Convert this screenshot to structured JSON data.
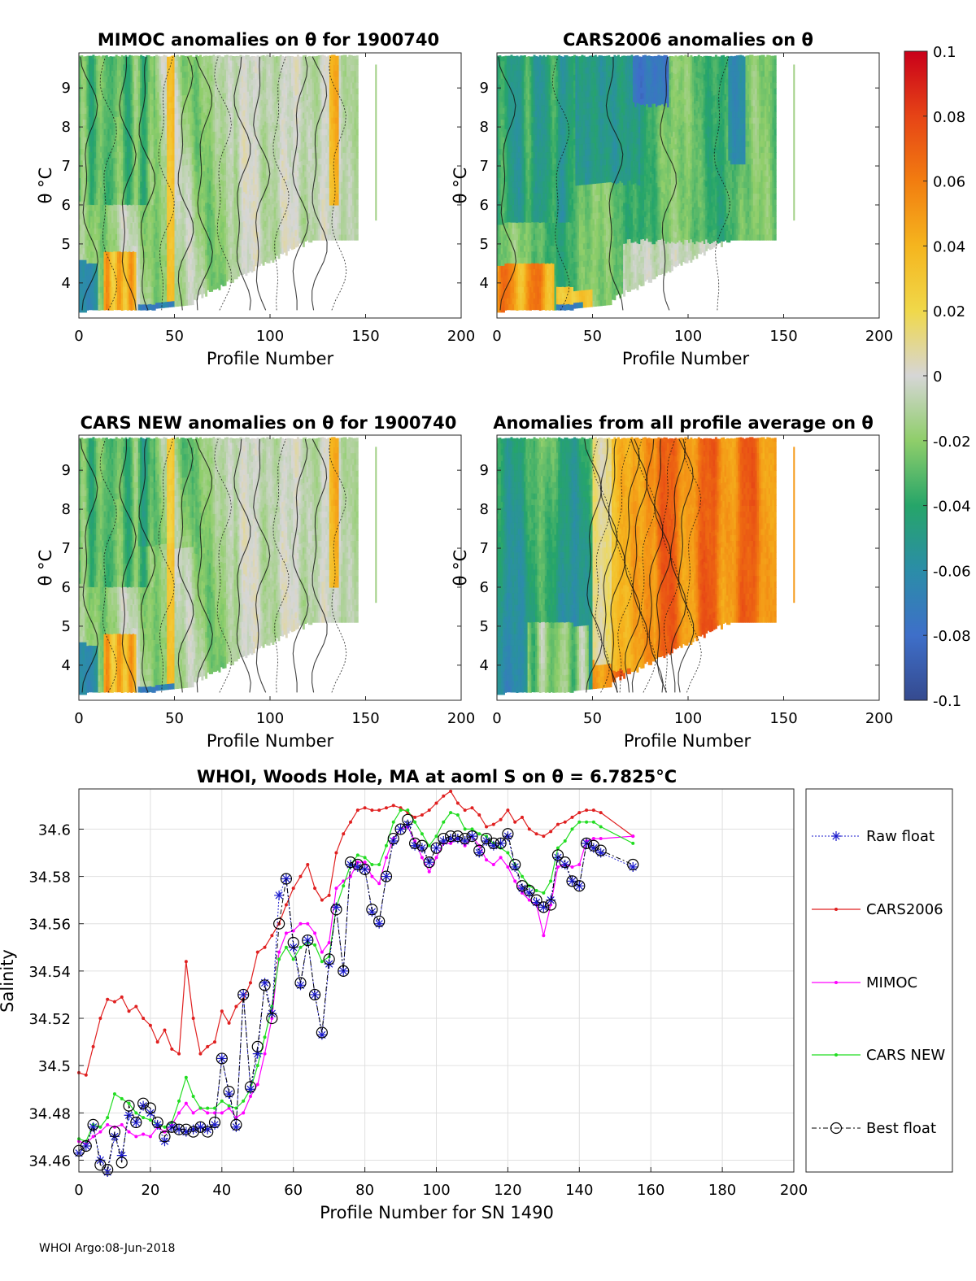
{
  "footer": "WHOI Argo:08-Jun-2018",
  "colors": {
    "raw": "#1a1acc",
    "cars2006": "#e02020",
    "mimoc": "#ff00ff",
    "carsnew": "#22dd22",
    "best": "#000000",
    "frame": "#262626",
    "grid": "#e0e0e0"
  },
  "colorbar": {
    "ticks": [
      "0.1",
      "0.08",
      "0.06",
      "0.04",
      "0.02",
      "0",
      "-0.02",
      "-0.04",
      "-0.06",
      "-0.08",
      "-0.1"
    ],
    "range": [
      -0.1,
      0.1
    ]
  },
  "chart_data": [
    {
      "type": "heatmap",
      "title": "MIMOC anomalies on θ  for 1900740",
      "xlabel": "Profile Number",
      "ylabel": "θ °C",
      "xlim": [
        0,
        200
      ],
      "ylim": [
        3.1,
        9.9
      ],
      "xticks": [
        "0",
        "50",
        "100",
        "150",
        "200"
      ],
      "yticks": [
        "4",
        "5",
        "6",
        "7",
        "8",
        "9"
      ],
      "profile_range": [
        0,
        146
      ],
      "pattern": "mimoc"
    },
    {
      "type": "heatmap",
      "title": "CARS2006 anomalies on θ",
      "xlabel": "Profile Number",
      "ylabel": "θ °C",
      "xlim": [
        0,
        200
      ],
      "ylim": [
        3.1,
        9.9
      ],
      "xticks": [
        "0",
        "50",
        "100",
        "150",
        "200"
      ],
      "yticks": [
        "4",
        "5",
        "6",
        "7",
        "8",
        "9"
      ],
      "profile_range": [
        0,
        146
      ],
      "pattern": "cars2006"
    },
    {
      "type": "heatmap",
      "title": "CARS NEW anomalies on θ for 1900740",
      "xlabel": "Profile Number",
      "ylabel": "θ °C",
      "xlim": [
        0,
        200
      ],
      "ylim": [
        3.1,
        9.9
      ],
      "xticks": [
        "0",
        "50",
        "100",
        "150",
        "200"
      ],
      "yticks": [
        "4",
        "5",
        "6",
        "7",
        "8",
        "9"
      ],
      "profile_range": [
        0,
        146
      ],
      "pattern": "carsnew"
    },
    {
      "type": "heatmap",
      "title": "Anomalies from all profile average on θ",
      "xlabel": "Profile Number",
      "ylabel": "θ °C",
      "xlim": [
        0,
        200
      ],
      "ylim": [
        3.1,
        9.9
      ],
      "xticks": [
        "0",
        "50",
        "100",
        "150",
        "200"
      ],
      "yticks": [
        "4",
        "5",
        "6",
        "7",
        "8",
        "9"
      ],
      "profile_range": [
        0,
        146
      ],
      "pattern": "average"
    },
    {
      "type": "line",
      "title": "WHOI, Woods Hole, MA at aoml S on θ = 6.7825°C",
      "xlabel": "Profile Number for SN 1490",
      "ylabel": "Salinity",
      "xlim": [
        0,
        200
      ],
      "ylim": [
        34.455,
        34.617
      ],
      "xticks": [
        0,
        20,
        40,
        60,
        80,
        100,
        120,
        140,
        160,
        180,
        200
      ],
      "yticks": [
        "34.46",
        "34.48",
        "34.5",
        "34.52",
        "34.54",
        "34.56",
        "34.58",
        "34.6"
      ],
      "legend": [
        "Raw float",
        "CARS2006",
        "MIMOC",
        "CARS NEW",
        "Best float"
      ],
      "x": [
        0,
        2,
        4,
        6,
        8,
        10,
        12,
        14,
        16,
        18,
        20,
        22,
        24,
        26,
        28,
        30,
        32,
        34,
        36,
        38,
        40,
        42,
        44,
        46,
        48,
        50,
        52,
        54,
        56,
        58,
        60,
        62,
        64,
        66,
        68,
        70,
        72,
        74,
        76,
        78,
        80,
        82,
        84,
        86,
        88,
        90,
        92,
        94,
        96,
        98,
        100,
        102,
        104,
        106,
        108,
        110,
        112,
        114,
        116,
        118,
        120,
        122,
        124,
        126,
        128,
        130,
        132,
        134,
        136,
        138,
        140,
        142,
        144,
        146,
        155
      ],
      "series": [
        {
          "name": "Raw float",
          "values": [
            34.463,
            34.466,
            34.474,
            34.46,
            34.455,
            34.47,
            34.462,
            34.479,
            34.476,
            34.483,
            34.48,
            34.475,
            34.468,
            34.474,
            34.473,
            34.472,
            34.473,
            34.474,
            34.473,
            34.475,
            34.503,
            34.488,
            34.474,
            34.53,
            34.49,
            34.505,
            34.535,
            34.522,
            34.572,
            34.579,
            34.55,
            34.534,
            34.553,
            34.53,
            34.513,
            34.543,
            34.567,
            34.54,
            34.585,
            34.584,
            34.583,
            34.565,
            34.56,
            34.58,
            34.595,
            34.6,
            34.602,
            34.593,
            34.592,
            34.586,
            34.592,
            34.595,
            34.596,
            34.596,
            34.595,
            34.597,
            34.59,
            34.595,
            34.593,
            34.594,
            34.597,
            34.584,
            34.575,
            34.573,
            34.569,
            34.567,
            34.57,
            34.588,
            34.585,
            34.578,
            34.576,
            34.594,
            34.592,
            34.59,
            34.584
          ]
        },
        {
          "name": "CARS2006",
          "values": [
            34.497,
            34.496,
            34.508,
            34.52,
            34.528,
            34.527,
            34.529,
            34.523,
            34.525,
            34.52,
            34.517,
            34.51,
            34.515,
            34.507,
            34.505,
            34.544,
            34.52,
            34.505,
            34.508,
            34.51,
            34.523,
            34.518,
            34.525,
            34.528,
            34.535,
            34.548,
            34.55,
            34.555,
            34.56,
            34.568,
            34.575,
            34.58,
            34.585,
            34.575,
            34.57,
            34.572,
            34.59,
            34.598,
            34.603,
            34.608,
            34.609,
            34.608,
            34.608,
            34.609,
            34.61,
            34.609,
            34.607,
            34.605,
            34.606,
            34.608,
            34.611,
            34.614,
            34.616,
            34.611,
            34.608,
            34.609,
            34.606,
            34.601,
            34.602,
            34.604,
            34.608,
            34.603,
            34.605,
            34.6,
            34.598,
            34.597,
            34.599,
            34.602,
            34.603,
            34.605,
            34.607,
            34.608,
            34.608,
            34.607,
            34.597
          ]
        },
        {
          "name": "MIMOC",
          "values": [
            34.468,
            34.467,
            34.47,
            34.472,
            34.475,
            34.474,
            34.475,
            34.472,
            34.47,
            34.471,
            34.47,
            34.474,
            34.472,
            34.475,
            34.48,
            34.484,
            34.48,
            34.482,
            34.48,
            34.48,
            34.48,
            34.482,
            34.478,
            34.48,
            34.487,
            34.492,
            34.505,
            34.52,
            34.548,
            34.556,
            34.557,
            34.56,
            34.56,
            34.556,
            34.548,
            34.552,
            34.575,
            34.578,
            34.58,
            34.586,
            34.586,
            34.58,
            34.577,
            34.588,
            34.596,
            34.6,
            34.601,
            34.595,
            34.588,
            34.582,
            34.588,
            34.594,
            34.594,
            34.596,
            34.593,
            34.597,
            34.593,
            34.587,
            34.585,
            34.588,
            34.584,
            34.578,
            34.573,
            34.57,
            34.568,
            34.555,
            34.568,
            34.584,
            34.585,
            34.584,
            34.585,
            34.595,
            34.596,
            34.596,
            34.597
          ]
        },
        {
          "name": "CARS NEW",
          "values": [
            34.469,
            34.468,
            34.475,
            34.474,
            34.478,
            34.488,
            34.486,
            34.484,
            34.48,
            34.478,
            34.477,
            34.475,
            34.474,
            34.476,
            34.485,
            34.495,
            34.487,
            34.482,
            34.482,
            34.482,
            34.485,
            34.483,
            34.482,
            34.485,
            34.49,
            34.5,
            34.512,
            34.525,
            34.545,
            34.55,
            34.545,
            34.55,
            34.552,
            34.551,
            34.544,
            34.546,
            34.567,
            34.576,
            34.585,
            34.589,
            34.588,
            34.585,
            34.585,
            34.593,
            34.603,
            34.608,
            34.608,
            34.603,
            34.598,
            34.593,
            34.597,
            34.603,
            34.607,
            34.606,
            34.6,
            34.6,
            34.598,
            34.597,
            34.594,
            34.592,
            34.59,
            34.585,
            34.58,
            34.576,
            34.574,
            34.573,
            34.578,
            34.592,
            34.595,
            34.6,
            34.603,
            34.603,
            34.603,
            34.601,
            34.594
          ]
        },
        {
          "name": "Best float",
          "values": [
            34.464,
            34.466,
            34.475,
            34.458,
            34.456,
            34.472,
            34.459,
            34.483,
            34.476,
            34.484,
            34.482,
            34.476,
            34.47,
            34.474,
            34.473,
            34.473,
            34.472,
            34.474,
            34.472,
            34.476,
            34.503,
            34.489,
            34.475,
            34.53,
            34.491,
            34.508,
            34.534,
            34.52,
            34.56,
            34.579,
            34.552,
            34.535,
            34.553,
            34.53,
            34.514,
            34.545,
            34.566,
            34.54,
            34.586,
            34.585,
            34.583,
            34.566,
            34.561,
            34.58,
            34.596,
            34.6,
            34.604,
            34.594,
            34.593,
            34.586,
            34.592,
            34.596,
            34.597,
            34.597,
            34.596,
            34.597,
            34.591,
            34.596,
            34.594,
            34.594,
            34.598,
            34.585,
            34.576,
            34.574,
            34.57,
            34.567,
            34.568,
            34.589,
            34.586,
            34.578,
            34.576,
            34.594,
            34.593,
            34.591,
            34.585
          ]
        }
      ]
    }
  ]
}
